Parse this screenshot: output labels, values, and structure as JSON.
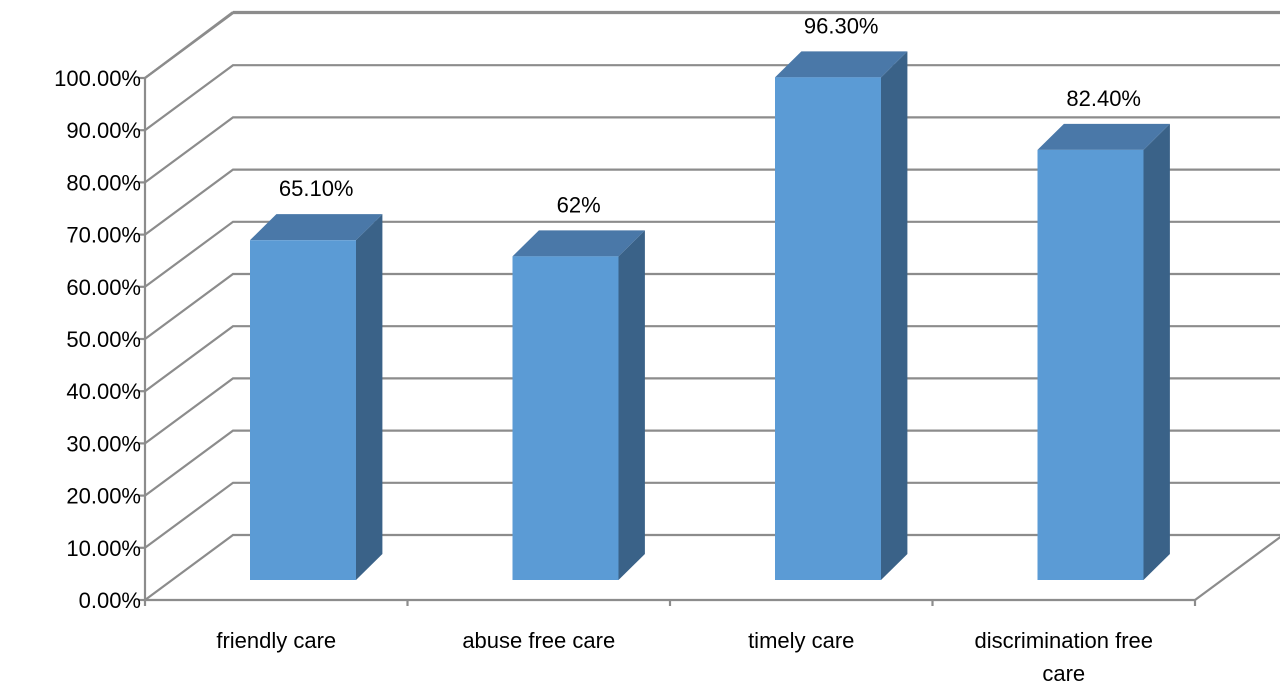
{
  "chart_data": {
    "type": "bar",
    "style": "3d-column",
    "title": "",
    "xlabel": "",
    "ylabel": "",
    "categories": [
      "friendly care",
      "abuse free care",
      "timely care",
      "discrimination free care"
    ],
    "category_lines": [
      [
        "friendly care"
      ],
      [
        "abuse free care"
      ],
      [
        "timely care"
      ],
      [
        "discrimination free",
        "care"
      ]
    ],
    "values": [
      65.1,
      62,
      96.3,
      82.4
    ],
    "value_labels": [
      "65.10%",
      "62%",
      "96.30%",
      "82.40%"
    ],
    "ylim": [
      0,
      100
    ],
    "yticks": [
      0,
      10,
      20,
      30,
      40,
      50,
      60,
      70,
      80,
      90,
      100
    ],
    "ytick_labels": [
      "0.00%",
      "10.00%",
      "20.00%",
      "30.00%",
      "40.00%",
      "50.00%",
      "60.00%",
      "70.00%",
      "80.00%",
      "90.00%",
      "100.00%"
    ],
    "grid": true,
    "legend": "none",
    "colors": {
      "bar_front": "#5b9bd5",
      "bar_top": "#4a78a8",
      "bar_side": "#3a6288",
      "grid": "#8c8c8c"
    }
  }
}
